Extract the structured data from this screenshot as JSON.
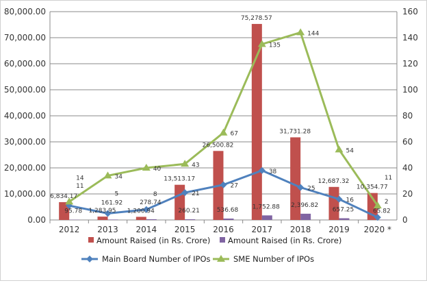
{
  "chart_data": {
    "type": "bar+line",
    "categories": [
      "2012",
      "2013",
      "2014",
      "2015",
      "2016",
      "2017",
      "2018",
      "2019",
      "2020 *"
    ],
    "left_axis": {
      "ylim": [
        0,
        80000
      ],
      "ticks": [
        "0.00",
        "10,000.00",
        "20,000.00",
        "30,000.00",
        "40,000.00",
        "50,000.00",
        "60,000.00",
        "70,000.00",
        "80,000.00"
      ]
    },
    "right_axis": {
      "ylim": [
        0,
        160
      ],
      "ticks": [
        "0",
        "20",
        "40",
        "60",
        "80",
        "100",
        "120",
        "140",
        "160"
      ]
    },
    "grid": true,
    "legend_position": "bottom",
    "bar_series": [
      {
        "name": "Amount Raised (in Rs. Crore)",
        "color": "#c0504d",
        "values": [
          6834.17,
          1283.95,
          1200.94,
          13513.17,
          26500.82,
          75278.57,
          31731.28,
          12687.32,
          10354.77
        ],
        "labels": [
          "6,834.17",
          "1,283.95",
          "1,200.94",
          "13,513.17",
          "26,500.82",
          "75,278.57",
          "31,731.28",
          "12,687.32",
          "10,354.77"
        ]
      },
      {
        "name": "Amount Raised (in Rs. Crore)",
        "color": "#8064a2",
        "values": [
          95.78,
          161.92,
          278.74,
          260.21,
          536.68,
          1752.88,
          2396.82,
          657.25,
          65.82
        ],
        "labels": [
          "95.78",
          "161.92",
          "278.74",
          "260.21",
          "536.68",
          "1,752.88",
          "2,396.82",
          "657.25",
          "65.82"
        ]
      }
    ],
    "line_series": [
      {
        "name": "Main Board Number of IPOs",
        "color": "#4f81bd",
        "marker": "diamond",
        "values": [
          11,
          5,
          8,
          21,
          27,
          38,
          25,
          16,
          2
        ]
      },
      {
        "name": "SME Number of IPOs",
        "color": "#9bbb59",
        "marker": "triangle",
        "values": [
          14,
          34,
          40,
          43,
          67,
          135,
          144,
          54,
          11
        ]
      }
    ]
  }
}
